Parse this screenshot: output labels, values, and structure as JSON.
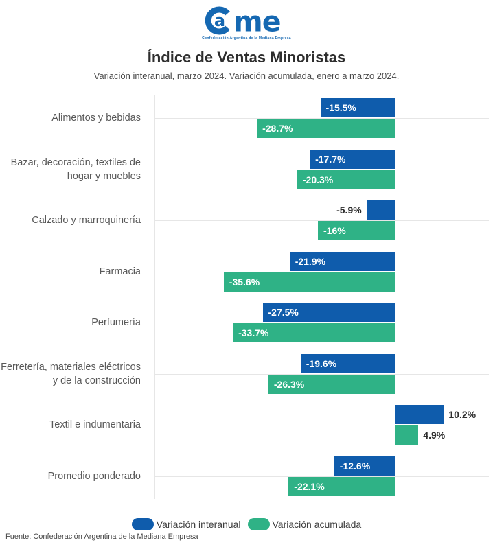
{
  "logo": {
    "brand_a": "a",
    "brand_rest": "me",
    "tagline": "Confederación Argentina de la Mediana Empresa"
  },
  "header": {
    "title": "Índice de Ventas Minoristas",
    "subtitle": "Variación interanual, marzo 2024. Variación acumulada, enero a marzo 2024."
  },
  "colors": {
    "interanual_blue": "#0f5cac",
    "acumulada_green": "#2fb286",
    "logo_blue": "#1568b2",
    "grid_gray": "#e6e6e6",
    "label_dark": "#2e2e2e"
  },
  "legend": {
    "items": [
      {
        "label": "Variación interanual",
        "color": "#0f5cac"
      },
      {
        "label": "Variación acumulada",
        "color": "#2fb286"
      }
    ]
  },
  "footer": {
    "source": "Fuente: Confederación Argentina de la Mediana Empresa"
  },
  "chart_data": {
    "type": "bar",
    "orientation": "horizontal",
    "title": "Índice de Ventas Minoristas",
    "subtitle": "Variación interanual, marzo 2024. Variación acumulada, enero a marzo 2024.",
    "categories": [
      "Alimentos y bebidas",
      "Bazar, decoración, textiles de hogar y muebles",
      "Calzado y marroquinería",
      "Farmacia",
      "Perfumería",
      "Ferretería, materiales eléctricos y de la construcción",
      "Textil e indumentaria",
      "Promedio ponderado"
    ],
    "series": [
      {
        "name": "Variación interanual",
        "color": "#0f5cac",
        "values": [
          -15.5,
          -17.7,
          -5.9,
          -21.9,
          -27.5,
          -19.6,
          10.2,
          -12.6
        ],
        "labels": [
          "-15.5%",
          "-17.7%",
          "-5.9%",
          "-21.9%",
          "-27.5%",
          "-19.6%",
          "10.2%",
          "-12.6%"
        ]
      },
      {
        "name": "Variación acumulada",
        "color": "#2fb286",
        "values": [
          -28.7,
          -20.3,
          -16,
          -35.6,
          -33.7,
          -26.3,
          4.9,
          -22.1
        ],
        "labels": [
          "-28.7%",
          "-20.3%",
          "-16%",
          "-35.6%",
          "-33.7%",
          "-26.3%",
          "4.9%",
          "-22.1%"
        ]
      }
    ],
    "xlim": [
      -50,
      20
    ],
    "grid": true,
    "legend_position": "bottom",
    "value_unit": "%"
  }
}
